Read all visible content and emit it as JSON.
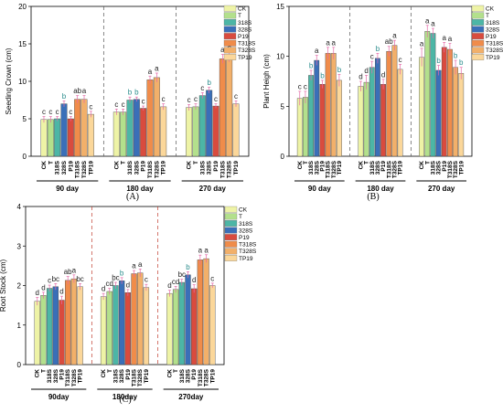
{
  "chart_data": [
    {
      "type": "bar",
      "panel_label": "(A)",
      "ylabel": "Seeding Crown (cm)",
      "ylim": [
        0,
        20
      ],
      "yticks": [
        0,
        5,
        10,
        15,
        20
      ],
      "groups": [
        "90 day",
        "180 day",
        "270 day"
      ],
      "categories": [
        "CK",
        "T",
        "318S",
        "328S",
        "P19",
        "T318S",
        "T328S",
        "TP19"
      ],
      "values": [
        [
          4.9,
          4.9,
          5.0,
          7.0,
          5.0,
          7.6,
          7.6,
          5.6
        ],
        [
          5.9,
          5.9,
          7.5,
          7.6,
          6.4,
          10.2,
          10.5,
          6.6
        ],
        [
          6.5,
          6.6,
          8.1,
          8.8,
          6.7,
          13.0,
          13.3,
          7.0
        ]
      ],
      "errors": [
        [
          0.4,
          0.4,
          0.3,
          0.4,
          0.3,
          0.5,
          0.5,
          0.4
        ],
        [
          0.4,
          0.4,
          0.4,
          0.3,
          0.3,
          0.5,
          0.6,
          0.4
        ],
        [
          0.4,
          0.4,
          0.4,
          0.4,
          0.3,
          0.6,
          0.7,
          0.4
        ]
      ],
      "letters": [
        [
          "c",
          "c",
          "c",
          "b",
          "c",
          "ab",
          "a",
          "c"
        ],
        [
          "c",
          "c",
          "b",
          "b",
          "c",
          "a",
          "a",
          "c"
        ],
        [
          "c",
          "c",
          "c",
          "b",
          "c",
          "a",
          "a",
          "c"
        ]
      ],
      "legend": [
        "CK",
        "T",
        "318S",
        "328S",
        "P19",
        "T318S",
        "T328S",
        "TP19"
      ]
    },
    {
      "type": "bar",
      "panel_label": "(B)",
      "ylabel": "Plant Heigh (cm)",
      "ylim": [
        0,
        15
      ],
      "yticks": [
        0,
        5,
        10,
        15
      ],
      "groups": [
        "90 day",
        "180 day",
        "270 day"
      ],
      "categories": [
        "CK",
        "T",
        "318S",
        "328S",
        "P19",
        "T318S",
        "T328S",
        "TP19"
      ],
      "values": [
        [
          5.8,
          5.9,
          8.1,
          9.6,
          7.2,
          10.3,
          10.3,
          7.6
        ],
        [
          7.0,
          7.4,
          8.9,
          9.8,
          7.2,
          10.5,
          11.1,
          8.7
        ],
        [
          9.9,
          12.5,
          12.3,
          8.6,
          10.9,
          10.7,
          8.9,
          8.3
        ]
      ],
      "errors": [
        [
          0.7,
          0.6,
          0.5,
          0.5,
          0.4,
          0.6,
          0.6,
          0.6
        ],
        [
          0.5,
          0.7,
          0.6,
          0.5,
          0.5,
          0.5,
          0.5,
          0.5
        ],
        [
          0.9,
          0.6,
          0.5,
          0.5,
          0.5,
          0.6,
          0.7,
          0.6
        ]
      ],
      "letters": [
        [
          "c",
          "c",
          "b",
          "a",
          "b",
          "a",
          "a",
          "b"
        ],
        [
          "d",
          "d",
          "c",
          "b",
          "d",
          "ab",
          "a",
          "c"
        ],
        [
          "a",
          "a",
          "a",
          "b",
          "a",
          "a",
          "b",
          "b"
        ]
      ],
      "legend": [
        "CK",
        "T",
        "318S",
        "328S",
        "P19",
        "T318S",
        "T328S",
        "TP19"
      ]
    },
    {
      "type": "bar",
      "panel_label": "(C)",
      "ylabel": "Root Stock (cm)",
      "ylim": [
        0,
        4
      ],
      "yticks": [
        0,
        1,
        2,
        3,
        4
      ],
      "groups": [
        "90day",
        "180day",
        "270day"
      ],
      "categories": [
        "CK",
        "T",
        "318S",
        "328S",
        "P19",
        "T318S",
        "T328S",
        "TP19"
      ],
      "values": [
        [
          1.6,
          1.75,
          1.93,
          1.97,
          1.63,
          2.13,
          2.17,
          1.97
        ],
        [
          1.72,
          1.85,
          2.0,
          2.12,
          1.82,
          2.3,
          2.32,
          1.95
        ],
        [
          1.8,
          1.9,
          2.08,
          2.27,
          1.92,
          2.65,
          2.68,
          2.0
        ]
      ],
      "errors": [
        [
          0.1,
          0.08,
          0.08,
          0.08,
          0.1,
          0.1,
          0.1,
          0.08
        ],
        [
          0.08,
          0.08,
          0.08,
          0.08,
          0.08,
          0.08,
          0.1,
          0.08
        ],
        [
          0.08,
          0.08,
          0.08,
          0.08,
          0.1,
          0.12,
          0.1,
          0.06
        ]
      ],
      "letters": [
        [
          "d",
          "d",
          "c",
          "bc",
          "d",
          "ab",
          "a",
          "bc"
        ],
        [
          "d",
          "cd",
          "bc",
          "b",
          "d",
          "a",
          "a",
          "c"
        ],
        [
          "d",
          "cd",
          "bc",
          "b",
          "d",
          "a",
          "a",
          "c"
        ]
      ],
      "legend": [
        "CK",
        "T",
        "318S",
        "328S",
        "P19",
        "T318S",
        "T328S",
        "TP19"
      ]
    }
  ],
  "colors": {
    "CK": "#eef3a6",
    "T": "#b3e08c",
    "318S": "#4cb6a6",
    "328S": "#3a6fb8",
    "P19": "#d94b3e",
    "T318S": "#f08c4a",
    "T328S": "#f2b06a",
    "TP19": "#fbd79a",
    "letter_teal": "#2a8c8c",
    "letter_orange": "#e07b39",
    "error": "#e46aa8"
  }
}
